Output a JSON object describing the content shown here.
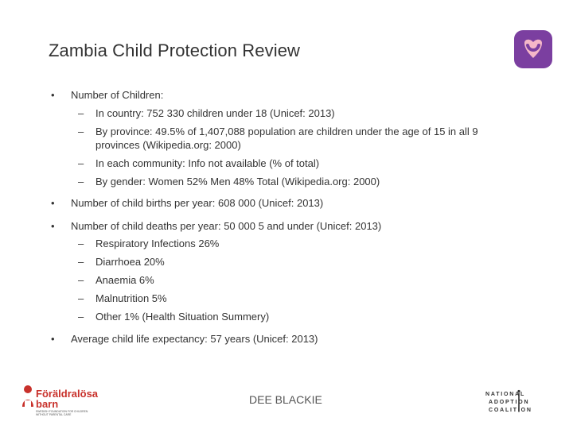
{
  "slide": {
    "title": "Zambia Child Protection Review",
    "bullets": [
      {
        "text": "Number of Children:",
        "sub": [
          "In country: 752 330 children under 18 (Unicef: 2013)",
          "By province: 49.5% of 1,407,088 population are children under the age of 15 in all 9",
          "provinces (Wikipedia.org: 2000)",
          "In each community: Info not available  (% of total)",
          "By gender: Women 52% Men 48% Total (Wikipedia.org: 2000)"
        ]
      },
      {
        "text": "Number of child births per year: 608 000 (Unicef: 2013)"
      },
      {
        "text": "Number of child deaths per year: 50 000 5 and under (Unicef: 2013)",
        "sub": [
          "Respiratory Infections 26%",
          "Diarrhoea 20%",
          "Anaemia 6%",
          "Malnutrition 5%",
          "Other 1% (Health Situation Summery)"
        ]
      },
      {
        "text": "Average child life expectancy: 57 years (Unicef: 2013)"
      }
    ],
    "bullet_glyph": "•",
    "dash_glyph": "–",
    "footer": "DEE BLACKIE",
    "logo_left": {
      "line1": "Föräldralösa",
      "line2": "barn",
      "tagline1": "SWEDISH FOUNDATION FOR CHILDREN",
      "tagline2": "WITHOUT PARENTAL CARE"
    },
    "logo_right": {
      "line1": "NATIONAL",
      "line2": "ADOPTION",
      "line3": "COALITION"
    },
    "colors": {
      "heart_bg": "#7b3fa0",
      "heart": "#f5b7c8",
      "brand_red": "#c8312b"
    },
    "icons": [
      "heart-logo-icon",
      "child-silhouette-icon"
    ]
  }
}
